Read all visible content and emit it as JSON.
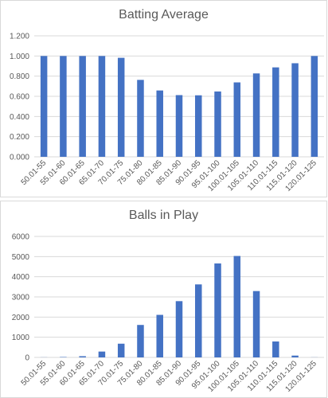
{
  "chart_data": [
    {
      "type": "bar",
      "title": "Batting Average",
      "xlabel": "",
      "ylabel": "",
      "ylim": [
        0,
        1.2
      ],
      "ytick_step": 0.2,
      "ytick_decimals": 3,
      "grid": true,
      "legend": "none",
      "bar_color": "#4472c4",
      "categories": [
        "50.01-55",
        "55.01-60",
        "60.01-65",
        "65.01-70",
        "70.01-75",
        "75.01-80",
        "80.01-85",
        "85.01-90",
        "90.01-95",
        "95.01-100",
        "100.01-105",
        "105.01-110",
        "110.01-115",
        "115.01-120",
        "120.01-125"
      ],
      "values": [
        1.0,
        1.0,
        1.0,
        1.0,
        0.982,
        0.763,
        0.658,
        0.612,
        0.61,
        0.648,
        0.738,
        0.827,
        0.887,
        0.928,
        1.0
      ]
    },
    {
      "type": "bar",
      "title": "Balls in Play",
      "xlabel": "",
      "ylabel": "",
      "ylim": [
        0,
        6000
      ],
      "ytick_step": 1000,
      "ytick_decimals": 0,
      "grid": true,
      "legend": "none",
      "bar_color": "#4472c4",
      "categories": [
        "50.01-55",
        "55.01-60",
        "60.01-65",
        "65.01-70",
        "70.01-75",
        "75.01-80",
        "80.01-85",
        "85.01-90",
        "90.01-95",
        "95.01-100",
        "100.01-105",
        "105.01-110",
        "110.01-115",
        "115.01-120",
        "120.01-125"
      ],
      "values": [
        5,
        20,
        60,
        290,
        680,
        1610,
        2110,
        2790,
        3620,
        4660,
        5030,
        3290,
        790,
        90,
        5
      ]
    }
  ]
}
